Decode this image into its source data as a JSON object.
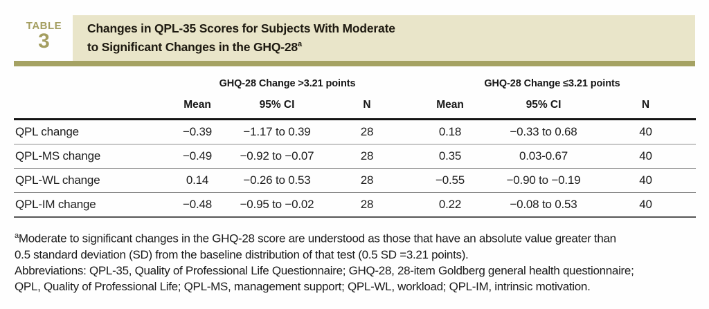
{
  "colors": {
    "banner_beige": "#e9e5c9",
    "accent_olive": "#a5a263",
    "table_label_olive": "#a49e60",
    "text_black": "#1b1b1b",
    "row_divider_gray": "#8a8a8a"
  },
  "table_label": {
    "word": "TABLE",
    "number": "3"
  },
  "title": {
    "line1": "Changes in QPL-35 Scores for Subjects With Moderate",
    "line2": "to Significant Changes in the GHQ-28",
    "superscript": "a"
  },
  "table": {
    "group_headers": [
      {
        "label": "GHQ-28 Change >3.21 points"
      },
      {
        "label": "GHQ-28 Change ≤3.21 points"
      }
    ],
    "sub_headers": [
      "Mean",
      "95% CI",
      "N",
      "Mean",
      "95% CI",
      "N"
    ],
    "rows": [
      {
        "label": "QPL change",
        "cells": [
          "−0.39",
          "−1.17 to 0.39",
          "28",
          "0.18",
          "−0.33 to 0.68",
          "40"
        ]
      },
      {
        "label": "QPL-MS change",
        "cells": [
          "−0.49",
          "−0.92 to −0.07",
          "28",
          "0.35",
          "0.03-0.67",
          "40"
        ]
      },
      {
        "label": "QPL-WL change",
        "cells": [
          "0.14",
          "−0.26 to 0.53",
          "28",
          "−0.55",
          "−0.90 to −0.19",
          "40"
        ]
      },
      {
        "label": "QPL-IM change",
        "cells": [
          "−0.48",
          "−0.95 to −0.02",
          "28",
          "0.22",
          "−0.08 to 0.53",
          "40"
        ]
      }
    ]
  },
  "footnotes": {
    "marker": "a",
    "line1": "Moderate to significant changes in the GHQ-28 score are understood as those that have an absolute value greater than",
    "line2": "0.5 standard deviation (SD) from the baseline distribution of that test (0.5 SD =3.21 points).",
    "line3": "Abbreviations: QPL-35, Quality of Professional Life Questionnaire; GHQ-28, 28-item Goldberg general health questionnaire;",
    "line4": "QPL, Quality of Professional Life; QPL-MS, management support; QPL-WL, workload; QPL-IM, intrinsic motivation."
  }
}
